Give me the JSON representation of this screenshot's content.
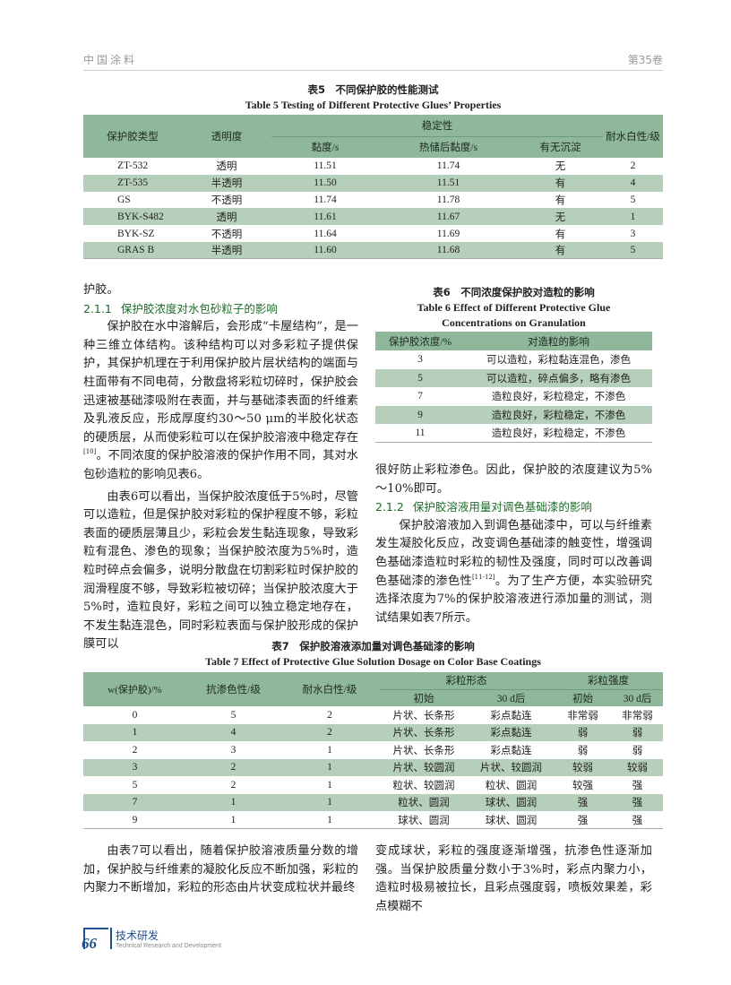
{
  "header": {
    "journal": "中国涂料",
    "volume": "第35卷"
  },
  "table5": {
    "title_cn": "表5　不同保护胶的性能测试",
    "title_en": "Table 5   Testing of Different Protective Glues’ Properties",
    "headers": {
      "type": "保护胶类型",
      "transparency": "透明度",
      "stability": "稳定性",
      "viscosity": "黏度/s",
      "viscosity_after": "热储后黏度/s",
      "sediment": "有无沉淀",
      "water_white": "耐水白性/级"
    },
    "rows": [
      [
        "ZT-532",
        "透明",
        "11.51",
        "11.74",
        "无",
        "2"
      ],
      [
        "ZT-535",
        "半透明",
        "11.50",
        "11.51",
        "有",
        "4"
      ],
      [
        "GS",
        "不透明",
        "11.74",
        "11.78",
        "有",
        "5"
      ],
      [
        "BYK-S482",
        "透明",
        "11.61",
        "11.67",
        "无",
        "1"
      ],
      [
        "BYK-SZ",
        "不透明",
        "11.64",
        "11.69",
        "有",
        "3"
      ],
      [
        "GRAS B",
        "半透明",
        "11.60",
        "11.68",
        "有",
        "5"
      ]
    ]
  },
  "left": {
    "p0": "护胶。",
    "h211_num": "2.1.1",
    "h211": "保护胶浓度对水包砂粒子的影响",
    "p1a": "保护胶在水中溶解后，会形成“卡屋结构”，是一种三维立体结构。该种结构可以对多彩粒子提供保护，其保护机理在于利用保护胶片层状结构的端面与柱面带有不同电荷，分散盘将彩粒切碎时，保护胶会迅速被基础漆吸附在表面，并与基础漆表面的纤维素及乳液反应，形成厚度约30～50 μm的半胶化状态的硬质层，从而使彩粒可以在保护胶溶液中稳定存在",
    "p1ref": "[10]",
    "p1b": "。不同浓度的保护胶溶液的保护作用不同，其对水包砂造粒的影响见表6。",
    "p2": "由表6可以看出，当保护胶浓度低于5%时，尽管可以造粒，但是保护胶对彩粒的保护程度不够，彩粒表面的硬质层薄且少，彩粒会发生黏连现象，导致彩粒有混色、渗色的现象；当保护胶浓度为5%时，造粒时碎点会偏多，说明分散盘在切割彩粒时保护胶的润滑程度不够，导致彩粒被切碎；当保护胶浓度大于5%时，造粒良好，彩粒之间可以独立稳定地存在，不发生黏连混色，同时彩粒表面与保护胶形成的保护膜可以"
  },
  "table6": {
    "title_cn": "表6　不同浓度保护胶对造粒的影响",
    "title_en1": "Table 6   Effect of Different Protective Glue",
    "title_en2": "Concentrations on Granulation",
    "headers": [
      "保护胶浓度/%",
      "对造粒的影响"
    ],
    "rows": [
      [
        "3",
        "可以造粒，彩粒黏连混色，渗色"
      ],
      [
        "5",
        "可以造粒，碎点偏多，略有渗色"
      ],
      [
        "7",
        "造粒良好，彩粒稳定，不渗色"
      ],
      [
        "9",
        "造粒良好，彩粒稳定，不渗色"
      ],
      [
        "11",
        "造粒良好，彩粒稳定，不渗色"
      ]
    ]
  },
  "right": {
    "p0": "很好防止彩粒渗色。因此，保护胶的浓度建议为5%～10%即可。",
    "h212_num": "2.1.2",
    "h212": "保护胶溶液用量对调色基础漆的影响",
    "p1a": "保护胶溶液加入到调色基础漆中，可以与纤维素发生凝胶化反应，改变调色基础漆的触变性，增强调色基础漆造粒时彩粒的韧性及强度，同时可以改善调色基础漆的渗色性",
    "p1ref": "[11-12]",
    "p1b": "。为了生产方便，本实验研究选择浓度为7%的保护胶溶液进行添加量的测试，测试结果如表7所示。"
  },
  "table7": {
    "title_cn": "表7　保护胶溶液添加量对调色基础漆的影响",
    "title_en": "Table 7   Effect of Protective Glue Solution Dosage on Color Base Coatings",
    "headers": {
      "w": "w(保护胶)/%",
      "anti_bleed": "抗渗色性/级",
      "water_white": "耐水白性/级",
      "shape": "彩粒形态",
      "strength": "彩粒强度",
      "initial": "初始",
      "after30": "30 d后"
    },
    "rows": [
      [
        "0",
        "5",
        "2",
        "片状、长条形",
        "彩点黏连",
        "非常弱",
        "非常弱"
      ],
      [
        "1",
        "4",
        "2",
        "片状、长条形",
        "彩点黏连",
        "弱",
        "弱"
      ],
      [
        "2",
        "3",
        "1",
        "片状、长条形",
        "彩点黏连",
        "弱",
        "弱"
      ],
      [
        "3",
        "2",
        "1",
        "片状、较圆润",
        "片状、较圆润",
        "较弱",
        "较弱"
      ],
      [
        "5",
        "2",
        "1",
        "粒状、较圆润",
        "粒状、圆润",
        "较强",
        "强"
      ],
      [
        "7",
        "1",
        "1",
        "粒状、圆润",
        "球状、圆润",
        "强",
        "强"
      ],
      [
        "9",
        "1",
        "1",
        "球状、圆润",
        "球状、圆润",
        "强",
        "强"
      ]
    ]
  },
  "bottom": {
    "left": "由表7可以看出，随着保护胶溶液质量分数的增加，保护胶与纤维素的凝胶化反应不断加强，彩粒的内聚力不断增加，彩粒的形态由片状变成粒状并最终",
    "right": "变成球状，彩粒的强度逐渐增强，抗渗色性逐渐加强。当保护胶质量分数小于3%时，彩点内聚力小，造粒时极易被拉长，且彩点强度弱，喷板效果差，彩点模糊不"
  },
  "footer": {
    "page": "66",
    "section_cn": "技术研发",
    "section_en": "Technical Research and Development"
  },
  "colors": {
    "header_green": "#8fb79a",
    "row_green": "#b6cfbb",
    "heading_green": "#1e6b2a",
    "footer_blue": "#1f4f8c"
  }
}
